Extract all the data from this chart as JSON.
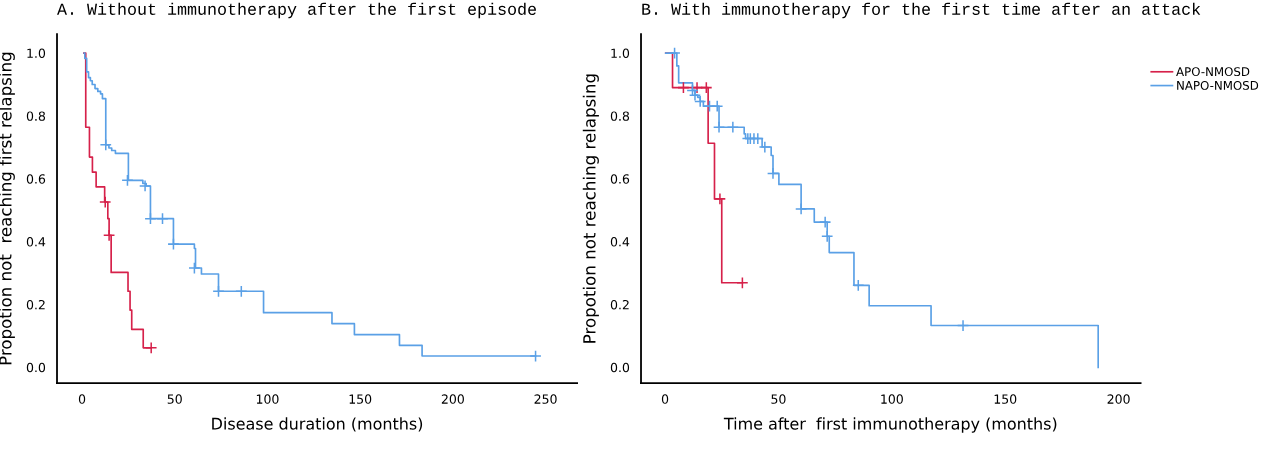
{
  "chart_data": [
    {
      "type": "step",
      "title": "A. Without immunotherapy after the first episode",
      "xlabel": "Disease duration (months)",
      "ylabel": "Propotion not  reaching first relapsing",
      "xlim": [
        -13.5,
        267
      ],
      "ylim": [
        -0.05,
        1.06
      ],
      "xticks": [
        0,
        50,
        100,
        150,
        200,
        250
      ],
      "yticks": [
        {
          "value": 0.0,
          "label": "0.0"
        },
        {
          "value": 0.2,
          "label": "0.2"
        },
        {
          "value": 0.4,
          "label": "0.4"
        },
        {
          "value": 0.6,
          "label": "0.6"
        },
        {
          "value": 0.8,
          "label": "0.8"
        },
        {
          "value": 1.0,
          "label": "1.0"
        }
      ],
      "grid": false,
      "legend": false,
      "series": [
        {
          "color": "#d6214a",
          "marker": "none",
          "x": [
            1,
            2,
            4,
            5.6,
            7.6,
            12.2,
            13.9,
            14.6,
            15.7,
            24.8,
            25.9,
            26.8,
            33,
            37.3
          ],
          "values": [
            1.0,
            0.764,
            0.669,
            0.621,
            0.574,
            0.526,
            0.473,
            0.42,
            0.302,
            0.242,
            0.182,
            0.121,
            0.062,
            0.062
          ]
        },
        {
          "color": "#5aa0e6",
          "marker": "none",
          "x": [
            1.2,
            1.5,
            2.5,
            3.5,
            4.5,
            5.5,
            7,
            8.5,
            10,
            11,
            12.8,
            14.5,
            16,
            18,
            25,
            32.8,
            34.6,
            36.9,
            49.3,
            60.6,
            61.2,
            64.4,
            73.6,
            97.9,
            134.8,
            146.9,
            171.2,
            183.4,
            244.6
          ],
          "values": [
            1.0,
            0.983,
            0.94,
            0.922,
            0.912,
            0.9,
            0.887,
            0.878,
            0.87,
            0.855,
            0.708,
            0.698,
            0.69,
            0.681,
            0.595,
            0.585,
            0.577,
            0.473,
            0.392,
            0.378,
            0.316,
            0.297,
            0.242,
            0.174,
            0.139,
            0.104,
            0.07,
            0.036,
            0.036
          ]
        },
        {
          "type": "scatter",
          "color": "#d6214a",
          "marker": "cross",
          "x": [
            12.5,
            14.6,
            37.3
          ],
          "values": [
            0.526,
            0.42,
            0.062
          ]
        },
        {
          "type": "scatter",
          "color": "#5aa0e6",
          "marker": "cross",
          "x": [
            12.8,
            24.5,
            34,
            36.9,
            43.4,
            49.3,
            60.6,
            73.6,
            85.9,
            244.6
          ],
          "values": [
            0.708,
            0.595,
            0.577,
            0.473,
            0.473,
            0.392,
            0.316,
            0.242,
            0.242,
            0.036
          ]
        }
      ]
    },
    {
      "type": "step",
      "title": "B. With immunotherapy for the first time after an attack",
      "xlabel": "Time after  first immunotherapy (months)",
      "ylabel": "Propotion not reaching relapsing",
      "xlim": [
        -10.6,
        209.7
      ],
      "ylim": [
        -0.05,
        1.06
      ],
      "xticks": [
        0,
        50,
        100,
        150,
        200
      ],
      "yticks": [
        {
          "value": 0.0,
          "label": "0.0"
        },
        {
          "value": 0.2,
          "label": "0.2"
        },
        {
          "value": 0.4,
          "label": "0.4"
        },
        {
          "value": 0.6,
          "label": "0.6"
        },
        {
          "value": 0.8,
          "label": "0.8"
        },
        {
          "value": 1.0,
          "label": "1.0"
        }
      ],
      "grid": false,
      "legend": "right",
      "series": [
        {
          "name": "APO-NMOSD",
          "color": "#d6214a",
          "marker": "none",
          "x": [
            0.3,
            3.3,
            19.0,
            21.8,
            25,
            34.1
          ],
          "values": [
            1.0,
            0.89,
            0.713,
            0.536,
            0.269,
            0.269
          ]
        },
        {
          "name": "NAPO-NMOSD",
          "color": "#5aa0e6",
          "marker": "none",
          "x": [
            0.3,
            5.2,
            6,
            12.1,
            13.2,
            14.4,
            15.5,
            16.9,
            23.8,
            34.9,
            35.5,
            42.8,
            46.8,
            47.6,
            50.2,
            60,
            65.8,
            71.5,
            72.4,
            83.3,
            90,
            117.3,
            191
          ],
          "values": [
            1.0,
            0.959,
            0.905,
            0.881,
            0.866,
            0.859,
            0.846,
            0.831,
            0.764,
            0.743,
            0.728,
            0.701,
            0.674,
            0.617,
            0.582,
            0.504,
            0.462,
            0.417,
            0.365,
            0.261,
            0.196,
            0.133,
            0.0
          ]
        },
        {
          "type": "scatter",
          "color": "#d6214a",
          "marker": "cross",
          "x": [
            8.1,
            14.1,
            18.2,
            24.2,
            34.1
          ],
          "values": [
            0.89,
            0.89,
            0.89,
            0.536,
            0.269
          ]
        },
        {
          "type": "scatter",
          "color": "#5aa0e6",
          "marker": "cross",
          "x": [
            4.2,
            12.1,
            13.2,
            15.5,
            19.6,
            23,
            23.8,
            29.9,
            36.5,
            37.6,
            39.2,
            40.9,
            44,
            47.6,
            60,
            70.6,
            71.5,
            85.2,
            131.4
          ],
          "values": [
            1.0,
            0.881,
            0.866,
            0.846,
            0.831,
            0.831,
            0.764,
            0.764,
            0.728,
            0.728,
            0.728,
            0.728,
            0.701,
            0.617,
            0.504,
            0.462,
            0.417,
            0.261,
            0.133
          ]
        }
      ]
    }
  ]
}
